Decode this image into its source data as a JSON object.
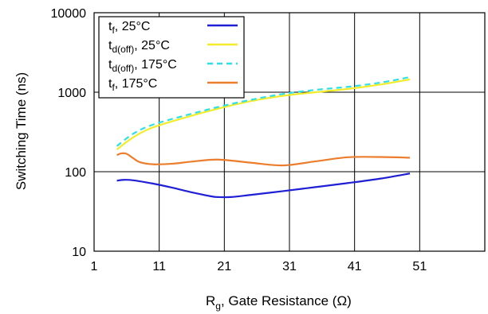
{
  "chart_data": {
    "type": "line",
    "title": "",
    "xlabel": {
      "main": "R",
      "sub": "g",
      "rest": ", Gate Resistance (Ω)"
    },
    "ylabel": "Switching Time (ns)",
    "xlim": [
      1,
      61
    ],
    "ylim": [
      10,
      10000
    ],
    "yscale": "log",
    "grid": true,
    "legend_position": "top-left",
    "x_ticks": [
      "1",
      "11",
      "21",
      "31",
      "41",
      "51"
    ],
    "y_ticks": [
      "10",
      "100",
      "1000",
      "10000"
    ],
    "series": [
      {
        "name": "tf, 25°C",
        "legend": {
          "main": "t",
          "sub": "f",
          "rest": ", 25°C"
        },
        "color": "#1f1fd6",
        "dash": "solid",
        "x": [
          4.5,
          5.5,
          7,
          10,
          13,
          16,
          19,
          20,
          22,
          25,
          30,
          35,
          40,
          45,
          49.5
        ],
        "y": [
          77,
          79,
          78,
          71,
          63,
          55,
          49,
          48,
          48,
          51,
          57,
          64,
          72,
          82,
          95
        ]
      },
      {
        "name": "td(off), 25°C",
        "legend": {
          "main": "t",
          "sub": "d(off)",
          "rest": ", 25°C"
        },
        "color": "#f2ec2a",
        "dash": "solid",
        "x": [
          4.5,
          7,
          10,
          15,
          20,
          25,
          30,
          35,
          40,
          45,
          49.5
        ],
        "y": [
          190,
          270,
          360,
          480,
          620,
          770,
          900,
          1000,
          1100,
          1250,
          1450
        ]
      },
      {
        "name": "td(off), 175°C",
        "legend": {
          "main": "t",
          "sub": "d(off)",
          "rest": ", 175°C"
        },
        "color": "#2ee0e6",
        "dash": "dashed",
        "x": [
          4.5,
          7,
          10,
          15,
          20,
          25,
          30,
          35,
          40,
          45,
          49.5
        ],
        "y": [
          210,
          300,
          390,
          510,
          650,
          800,
          950,
          1070,
          1170,
          1320,
          1550
        ]
      },
      {
        "name": "tf, 175°C",
        "legend": {
          "main": "t",
          "sub": "f",
          "rest": ", 175°C"
        },
        "color": "#ec7d2c",
        "dash": "solid",
        "x": [
          4.5,
          5.2,
          6,
          7,
          8,
          10,
          13,
          16,
          20,
          25,
          30,
          35,
          40,
          45,
          49.5
        ],
        "y": [
          162,
          170,
          168,
          148,
          132,
          124,
          126,
          134,
          142,
          130,
          120,
          135,
          152,
          153,
          150
        ]
      }
    ]
  }
}
